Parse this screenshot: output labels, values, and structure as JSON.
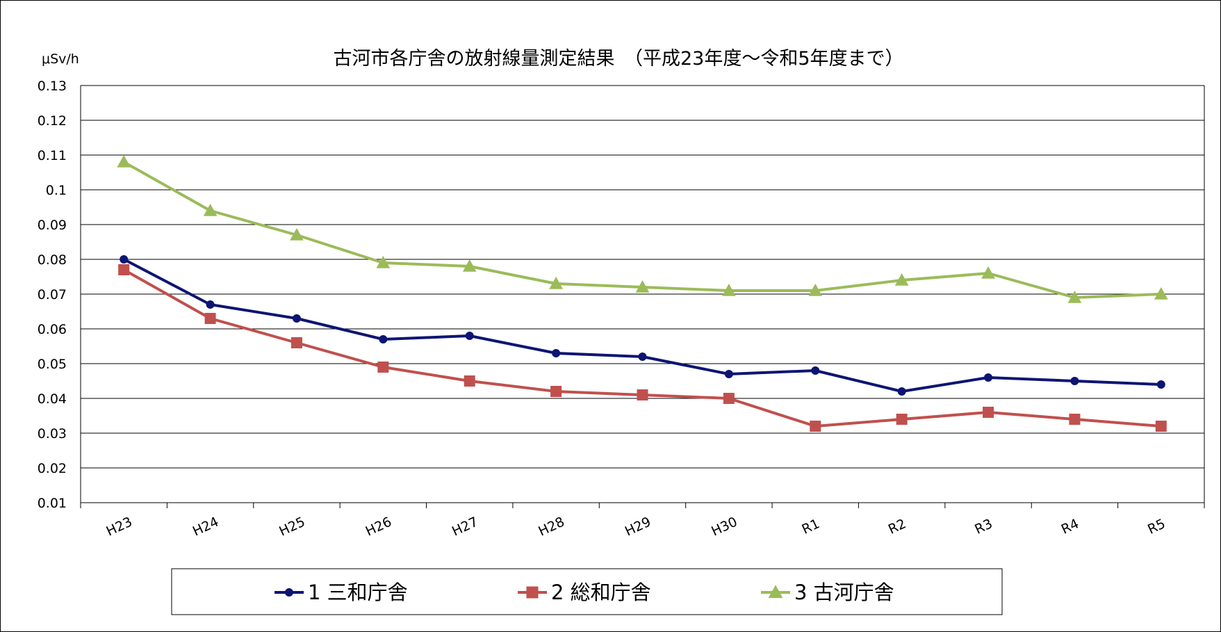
{
  "chart_data": {
    "type": "line",
    "title": "古河市各庁舎の放射線量測定結果　（平成23年度～令和5年度まで）",
    "ylabel": "μSv/h",
    "xlabel": "",
    "ylim": [
      0.01,
      0.13
    ],
    "yticks": [
      "0.13",
      "0.12",
      "0.11",
      "0.1",
      "0.09",
      "0.08",
      "0.07",
      "0.06",
      "0.05",
      "0.04",
      "0.03",
      "0.02",
      "0.01"
    ],
    "categories": [
      "H23",
      "H24",
      "H25",
      "H26",
      "H27",
      "H28",
      "H29",
      "H30",
      "R1",
      "R2",
      "R3",
      "R4",
      "R5"
    ],
    "grid": true,
    "legend_position": "bottom",
    "series": [
      {
        "name": "1 三和庁舎",
        "marker": "circle",
        "color": "#0d1573",
        "values": [
          0.08,
          0.067,
          0.063,
          0.057,
          0.058,
          0.053,
          0.052,
          0.047,
          0.048,
          0.042,
          0.046,
          0.045,
          0.044
        ]
      },
      {
        "name": "2 総和庁舎",
        "marker": "square",
        "color": "#c0504d",
        "values": [
          0.077,
          0.063,
          0.056,
          0.049,
          0.045,
          0.042,
          0.041,
          0.04,
          0.032,
          0.034,
          0.036,
          0.034,
          0.032
        ]
      },
      {
        "name": "3 古河庁舎",
        "marker": "triangle",
        "color": "#9bbb59",
        "values": [
          0.108,
          0.094,
          0.087,
          0.079,
          0.078,
          0.073,
          0.072,
          0.071,
          0.071,
          0.074,
          0.076,
          0.069,
          0.07
        ]
      }
    ]
  }
}
